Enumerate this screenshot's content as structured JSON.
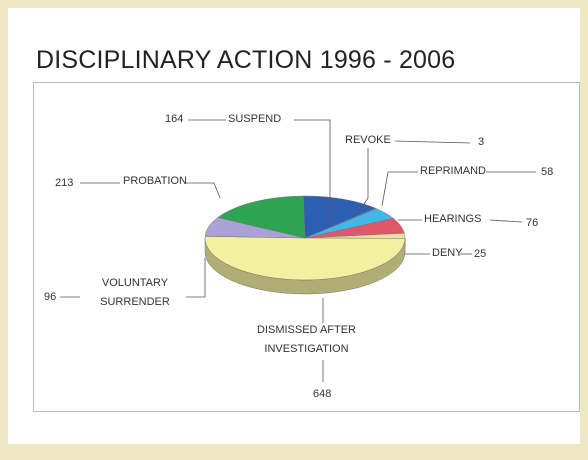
{
  "chart_data": {
    "type": "pie",
    "title": "DISCIPLINARY ACTION 1996 - 2006",
    "categories": [
      "SUSPEND",
      "REVOKE",
      "REPRIMAND",
      "HEARINGS",
      "DENY",
      "DISMISSED AFTER INVESTIGATION",
      "VOLUNTARY SURRENDER",
      "PROBATION"
    ],
    "values": [
      164,
      3,
      58,
      76,
      25,
      648,
      96,
      213
    ],
    "colors": [
      "#2b5fb3",
      "#3cc3e6",
      "#45b6e8",
      "#e2566a",
      "#e8e0a0",
      "#f4f0a2",
      "#aaa2d4",
      "#2ea352"
    ]
  }
}
